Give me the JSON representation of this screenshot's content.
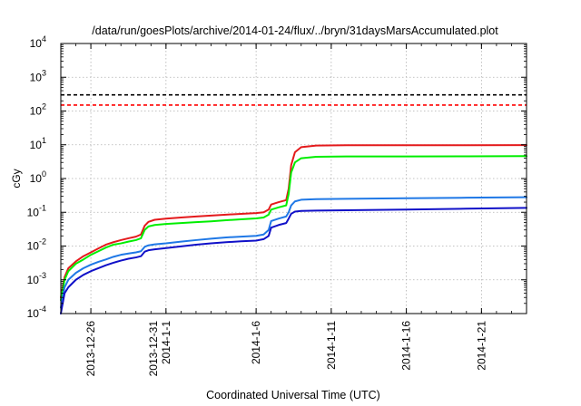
{
  "chart_data": {
    "type": "line",
    "title": "/data/run/goesPlots/archive/2014-01-24/flux/../bryn/31daysMarsAccumulated.plot",
    "xlabel": "Coordinated Universal Time (UTC)",
    "ylabel": "cGy",
    "yscale": "log",
    "ylim": [
      0.0001,
      10000
    ],
    "xlim": [
      "2013-12-24",
      "2014-01-24"
    ],
    "grid": true,
    "y_ticks": [
      {
        "base": "10",
        "exp": "-4"
      },
      {
        "base": "10",
        "exp": "-3"
      },
      {
        "base": "10",
        "exp": "-2"
      },
      {
        "base": "10",
        "exp": "-1"
      },
      {
        "base": "10",
        "exp": "0"
      },
      {
        "base": "10",
        "exp": "1"
      },
      {
        "base": "10",
        "exp": "2"
      },
      {
        "base": "10",
        "exp": "3"
      },
      {
        "base": "10",
        "exp": "4"
      }
    ],
    "x_ticks": [
      {
        "date": "2013-12-26",
        "label": [
          "2013-12-26"
        ]
      },
      {
        "date": "2013-12-31",
        "label": [
          "2013-12-31",
          "2014-1-1"
        ]
      },
      {
        "date": "2014-01-06",
        "label": [
          "2014-1-6"
        ]
      },
      {
        "date": "2014-01-11",
        "label": [
          "2014-1-11"
        ]
      },
      {
        "date": "2014-01-16",
        "label": [
          "2014-1-16"
        ]
      },
      {
        "date": "2014-01-21",
        "label": [
          "2014-1-21"
        ]
      }
    ],
    "reference_lines": [
      {
        "y": 300,
        "color": "#000000",
        "style": "dashed"
      },
      {
        "y": 150,
        "color": "#ff0000",
        "style": "dashed"
      }
    ],
    "series": [
      {
        "color": "#e41a1c",
        "points": [
          [
            "2013-12-24T00:00",
            0.0003
          ],
          [
            "2013-12-24T06:00",
            0.0012
          ],
          [
            "2013-12-24T12:00",
            0.0022
          ],
          [
            "2013-12-25T00:00",
            0.0035
          ],
          [
            "2013-12-25T12:00",
            0.005
          ],
          [
            "2013-12-26T00:00",
            0.0065
          ],
          [
            "2013-12-26T12:00",
            0.0085
          ],
          [
            "2013-12-27T00:00",
            0.011
          ],
          [
            "2013-12-27T12:00",
            0.013
          ],
          [
            "2013-12-28T00:00",
            0.015
          ],
          [
            "2013-12-28T12:00",
            0.017
          ],
          [
            "2013-12-29T00:00",
            0.019
          ],
          [
            "2013-12-29T08:00",
            0.022
          ],
          [
            "2013-12-29T14:00",
            0.04
          ],
          [
            "2013-12-29T20:00",
            0.052
          ],
          [
            "2013-12-30T06:00",
            0.06
          ],
          [
            "2013-12-31T00:00",
            0.065
          ],
          [
            "2014-01-01T00:00",
            0.07
          ],
          [
            "2014-01-02T00:00",
            0.075
          ],
          [
            "2014-01-03T00:00",
            0.08
          ],
          [
            "2014-01-04T00:00",
            0.085
          ],
          [
            "2014-01-05T00:00",
            0.09
          ],
          [
            "2014-01-06T00:00",
            0.095
          ],
          [
            "2014-01-06T12:00",
            0.1
          ],
          [
            "2014-01-06T20:00",
            0.12
          ],
          [
            "2014-01-07T00:00",
            0.17
          ],
          [
            "2014-01-07T12:00",
            0.2
          ],
          [
            "2014-01-08T00:00",
            0.23
          ],
          [
            "2014-01-08T04:00",
            0.5
          ],
          [
            "2014-01-08T08:00",
            2.5
          ],
          [
            "2014-01-08T14:00",
            6
          ],
          [
            "2014-01-09T00:00",
            8.5
          ],
          [
            "2014-01-10T00:00",
            9.5
          ],
          [
            "2014-01-12T00:00",
            9.7
          ],
          [
            "2014-01-16T00:00",
            9.7
          ],
          [
            "2014-01-20T00:00",
            9.7
          ],
          [
            "2014-01-24T00:00",
            9.8
          ]
        ]
      },
      {
        "color": "#00ee00",
        "points": [
          [
            "2013-12-24T00:00",
            0.00025
          ],
          [
            "2013-12-24T06:00",
            0.001
          ],
          [
            "2013-12-24T12:00",
            0.0018
          ],
          [
            "2013-12-25T00:00",
            0.003
          ],
          [
            "2013-12-25T12:00",
            0.004
          ],
          [
            "2013-12-26T00:00",
            0.0055
          ],
          [
            "2013-12-26T12:00",
            0.007
          ],
          [
            "2013-12-27T00:00",
            0.009
          ],
          [
            "2013-12-27T12:00",
            0.011
          ],
          [
            "2013-12-28T00:00",
            0.012
          ],
          [
            "2013-12-28T12:00",
            0.0135
          ],
          [
            "2013-12-29T00:00",
            0.015
          ],
          [
            "2013-12-29T08:00",
            0.017
          ],
          [
            "2013-12-29T14:00",
            0.03
          ],
          [
            "2013-12-29T20:00",
            0.038
          ],
          [
            "2013-12-30T06:00",
            0.042
          ],
          [
            "2013-12-31T00:00",
            0.045
          ],
          [
            "2014-01-01T00:00",
            0.048
          ],
          [
            "2014-01-02T00:00",
            0.051
          ],
          [
            "2014-01-03T00:00",
            0.054
          ],
          [
            "2014-01-04T00:00",
            0.058
          ],
          [
            "2014-01-05T00:00",
            0.062
          ],
          [
            "2014-01-06T00:00",
            0.066
          ],
          [
            "2014-01-06T12:00",
            0.07
          ],
          [
            "2014-01-06T20:00",
            0.085
          ],
          [
            "2014-01-07T00:00",
            0.12
          ],
          [
            "2014-01-07T12:00",
            0.14
          ],
          [
            "2014-01-08T00:00",
            0.16
          ],
          [
            "2014-01-08T04:00",
            0.35
          ],
          [
            "2014-01-08T08:00",
            1.5
          ],
          [
            "2014-01-08T14:00",
            3
          ],
          [
            "2014-01-09T00:00",
            4
          ],
          [
            "2014-01-10T00:00",
            4.4
          ],
          [
            "2014-01-12T00:00",
            4.5
          ],
          [
            "2014-01-16T00:00",
            4.5
          ],
          [
            "2014-01-20T00:00",
            4.55
          ],
          [
            "2014-01-24T00:00",
            4.6
          ]
        ]
      },
      {
        "color": "#1f78e6",
        "points": [
          [
            "2013-12-24T00:00",
            0.00015
          ],
          [
            "2013-12-24T06:00",
            0.0006
          ],
          [
            "2013-12-24T12:00",
            0.001
          ],
          [
            "2013-12-25T00:00",
            0.0016
          ],
          [
            "2013-12-25T12:00",
            0.0022
          ],
          [
            "2013-12-26T00:00",
            0.0028
          ],
          [
            "2013-12-26T12:00",
            0.0034
          ],
          [
            "2013-12-27T00:00",
            0.004
          ],
          [
            "2013-12-27T12:00",
            0.0048
          ],
          [
            "2013-12-28T00:00",
            0.0055
          ],
          [
            "2013-12-28T12:00",
            0.006
          ],
          [
            "2013-12-29T00:00",
            0.0065
          ],
          [
            "2013-12-29T08:00",
            0.007
          ],
          [
            "2013-12-29T14:00",
            0.0095
          ],
          [
            "2013-12-29T20:00",
            0.0105
          ],
          [
            "2013-12-30T06:00",
            0.0112
          ],
          [
            "2013-12-31T00:00",
            0.012
          ],
          [
            "2014-01-01T00:00",
            0.0135
          ],
          [
            "2014-01-02T00:00",
            0.015
          ],
          [
            "2014-01-03T00:00",
            0.0165
          ],
          [
            "2014-01-04T00:00",
            0.018
          ],
          [
            "2014-01-05T00:00",
            0.019
          ],
          [
            "2014-01-06T00:00",
            0.02
          ],
          [
            "2014-01-06T12:00",
            0.022
          ],
          [
            "2014-01-06T20:00",
            0.03
          ],
          [
            "2014-01-07T00:00",
            0.055
          ],
          [
            "2014-01-07T12:00",
            0.065
          ],
          [
            "2014-01-08T00:00",
            0.075
          ],
          [
            "2014-01-08T04:00",
            0.1
          ],
          [
            "2014-01-08T08:00",
            0.16
          ],
          [
            "2014-01-08T14:00",
            0.21
          ],
          [
            "2014-01-09T00:00",
            0.235
          ],
          [
            "2014-01-10T00:00",
            0.245
          ],
          [
            "2014-01-12T00:00",
            0.25
          ],
          [
            "2014-01-16T00:00",
            0.26
          ],
          [
            "2014-01-20T00:00",
            0.27
          ],
          [
            "2014-01-24T00:00",
            0.28
          ]
        ]
      },
      {
        "color": "#1010c8",
        "points": [
          [
            "2013-12-24T00:00",
            0.0001
          ],
          [
            "2013-12-24T06:00",
            0.0004
          ],
          [
            "2013-12-24T12:00",
            0.0006
          ],
          [
            "2013-12-25T00:00",
            0.001
          ],
          [
            "2013-12-25T12:00",
            0.0014
          ],
          [
            "2013-12-26T00:00",
            0.0018
          ],
          [
            "2013-12-26T12:00",
            0.0022
          ],
          [
            "2013-12-27T00:00",
            0.0027
          ],
          [
            "2013-12-27T12:00",
            0.0032
          ],
          [
            "2013-12-28T00:00",
            0.0037
          ],
          [
            "2013-12-28T12:00",
            0.0042
          ],
          [
            "2013-12-29T00:00",
            0.0046
          ],
          [
            "2013-12-29T08:00",
            0.005
          ],
          [
            "2013-12-29T14:00",
            0.0068
          ],
          [
            "2013-12-29T20:00",
            0.0075
          ],
          [
            "2013-12-30T06:00",
            0.008
          ],
          [
            "2013-12-31T00:00",
            0.0087
          ],
          [
            "2014-01-01T00:00",
            0.0098
          ],
          [
            "2014-01-02T00:00",
            0.011
          ],
          [
            "2014-01-03T00:00",
            0.012
          ],
          [
            "2014-01-04T00:00",
            0.013
          ],
          [
            "2014-01-05T00:00",
            0.0138
          ],
          [
            "2014-01-06T00:00",
            0.0145
          ],
          [
            "2014-01-06T12:00",
            0.016
          ],
          [
            "2014-01-06T20:00",
            0.02
          ],
          [
            "2014-01-07T00:00",
            0.035
          ],
          [
            "2014-01-07T12:00",
            0.042
          ],
          [
            "2014-01-08T00:00",
            0.048
          ],
          [
            "2014-01-08T04:00",
            0.065
          ],
          [
            "2014-01-08T08:00",
            0.09
          ],
          [
            "2014-01-08T14:00",
            0.105
          ],
          [
            "2014-01-09T00:00",
            0.11
          ],
          [
            "2014-01-10T00:00",
            0.112
          ],
          [
            "2014-01-12T00:00",
            0.115
          ],
          [
            "2014-01-16T00:00",
            0.12
          ],
          [
            "2014-01-20T00:00",
            0.128
          ],
          [
            "2014-01-24T00:00",
            0.135
          ]
        ]
      }
    ]
  }
}
